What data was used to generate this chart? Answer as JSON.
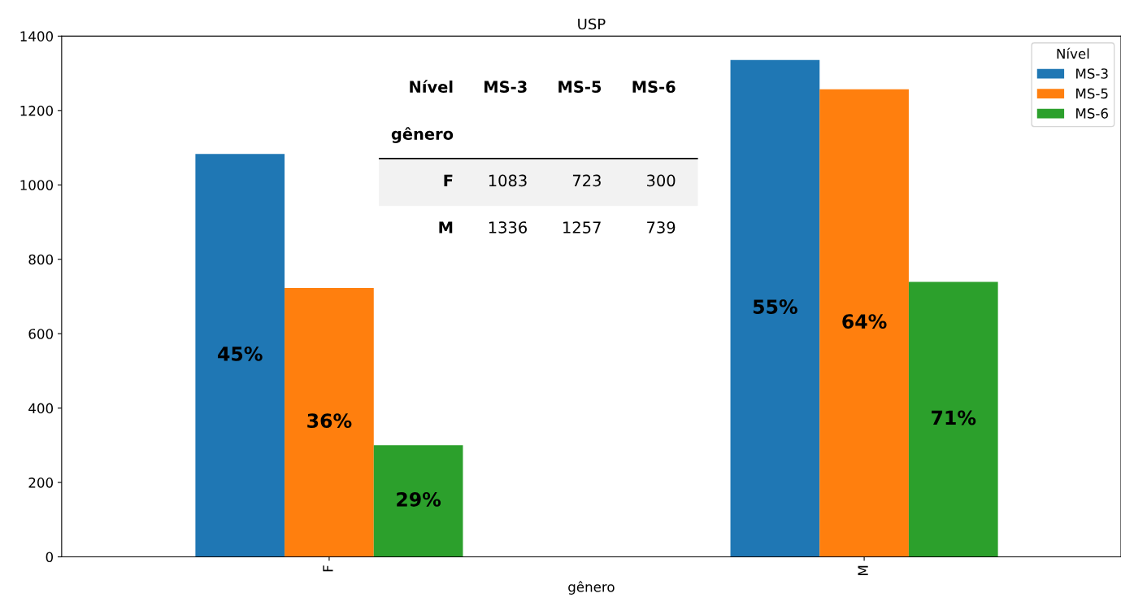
{
  "chart_data": {
    "type": "bar",
    "title": "USP",
    "xlabel": "gênero",
    "legend_title": "Nível",
    "categories": [
      "F",
      "M"
    ],
    "series": [
      {
        "name": "MS-3",
        "color": "#1f77b4",
        "values": [
          1083,
          1336
        ]
      },
      {
        "name": "MS-5",
        "color": "#ff7f0e",
        "values": [
          723,
          1257
        ]
      },
      {
        "name": "MS-6",
        "color": "#2ca02c",
        "values": [
          300,
          739
        ]
      }
    ],
    "annotations": [
      "45%",
      "55%",
      "36%",
      "64%",
      "29%",
      "71%",
      "1083",
      "723",
      "300",
      "1336",
      "1257",
      "739"
    ],
    "ylim": [
      0,
      1400
    ],
    "yticks": [
      0,
      200,
      400,
      600,
      800,
      1000,
      1200,
      1400
    ],
    "grid": false,
    "legend": "top right"
  }
}
